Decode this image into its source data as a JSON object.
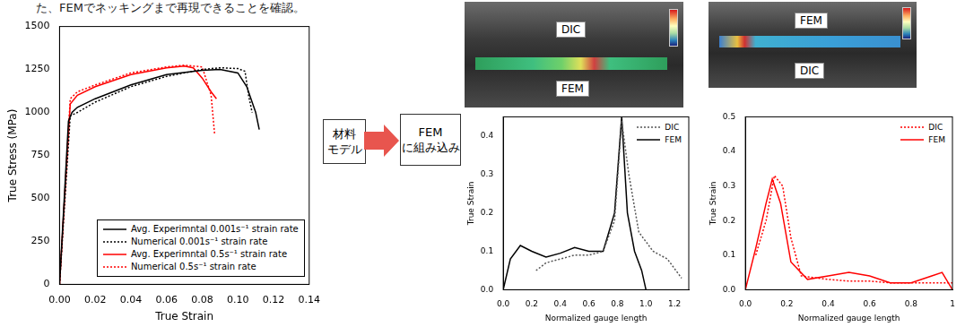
{
  "header": {
    "text": "た、FEMでネッキングまで再現できることを確認。"
  },
  "flow": [
    [
      "材料",
      "モデル"
    ],
    [
      "FEM",
      "に組み込み"
    ]
  ],
  "images": [
    {
      "labels": [
        "DIC",
        "FEM"
      ]
    },
    {
      "labels": [
        "FEM",
        "DIC"
      ]
    }
  ],
  "chart_data": [
    {
      "type": "line",
      "x_label": "True Strain",
      "y_label": "True Stress (MPa)",
      "xlim": [
        0,
        0.14
      ],
      "xticks": [
        {
          "value": 0,
          "label": "0.00"
        },
        {
          "value": 0.02,
          "label": "0.02"
        },
        {
          "value": 0.04,
          "label": "0.04"
        },
        {
          "value": 0.06,
          "label": "0.06"
        },
        {
          "value": 0.08,
          "label": "0.08"
        },
        {
          "value": 0.1,
          "label": "0.10"
        },
        {
          "value": 0.12,
          "label": "0.12"
        },
        {
          "value": 0.14,
          "label": "0.14"
        }
      ],
      "ylim": [
        0,
        1500
      ],
      "yticks": [
        0,
        250,
        500,
        750,
        1000,
        1250,
        1500
      ],
      "grid": false,
      "legend": "lower right",
      "series": [
        {
          "name": "Avg. Experimntal 0.001s⁻¹ strain rate",
          "color": "#000000",
          "line_style": "solid",
          "x": [
            0,
            0.005,
            0.007,
            0.01,
            0.02,
            0.04,
            0.06,
            0.08,
            0.09,
            0.1,
            0.105,
            0.11,
            0.112
          ],
          "values": [
            0,
            950,
            1000,
            1030,
            1080,
            1160,
            1220,
            1245,
            1250,
            1230,
            1150,
            1000,
            900
          ]
        },
        {
          "name": "Numerical 0.001s⁻¹ strain rate",
          "color": "#000000",
          "line_style": "dotted",
          "x": [
            0,
            0.006,
            0.01,
            0.02,
            0.04,
            0.06,
            0.08,
            0.09,
            0.1,
            0.104,
            0.106,
            0.108
          ],
          "values": [
            0,
            980,
            1000,
            1060,
            1150,
            1210,
            1250,
            1260,
            1255,
            1240,
            1100,
            1000
          ]
        },
        {
          "name": "Avg. Experimntal 0.5s⁻¹ strain rate",
          "color": "#ff0000",
          "line_style": "solid",
          "x": [
            0,
            0.006,
            0.01,
            0.02,
            0.04,
            0.06,
            0.07,
            0.075,
            0.08,
            0.085,
            0.088
          ],
          "values": [
            0,
            1050,
            1100,
            1150,
            1220,
            1260,
            1270,
            1260,
            1200,
            1120,
            1080
          ]
        },
        {
          "name": "Numerical 0.5s⁻¹ strain rate",
          "color": "#ff0000",
          "line_style": "dotted",
          "x": [
            0,
            0.006,
            0.01,
            0.02,
            0.04,
            0.06,
            0.07,
            0.08,
            0.085,
            0.087
          ],
          "values": [
            0,
            1080,
            1120,
            1160,
            1230,
            1265,
            1275,
            1265,
            1100,
            870
          ]
        }
      ]
    },
    {
      "type": "line",
      "x_label": "Normalized gauge length",
      "y_label": "True Strain",
      "xlim": [
        0,
        1.3
      ],
      "xticks": [
        {
          "value": 0,
          "label": "0.0"
        },
        {
          "value": 0.2,
          "label": "0.2"
        },
        {
          "value": 0.4,
          "label": "0.4"
        },
        {
          "value": 0.6,
          "label": "0.6"
        },
        {
          "value": 0.8,
          "label": "0.8"
        },
        {
          "value": 1,
          "label": "1.0"
        },
        {
          "value": 1.2,
          "label": "1.2"
        }
      ],
      "ylim": [
        0,
        0.45
      ],
      "yticks": [
        {
          "value": 0,
          "label": "0.0"
        },
        0.1,
        0.2,
        0.3,
        0.4
      ],
      "grid": false,
      "legend": "upper right",
      "series": [
        {
          "name": "DIC",
          "color": "#555555",
          "line_style": "dotted",
          "x": [
            0.23,
            0.3,
            0.4,
            0.5,
            0.6,
            0.7,
            0.78,
            0.83,
            0.88,
            0.95,
            1.05,
            1.15,
            1.25
          ],
          "values": [
            0.05,
            0.07,
            0.08,
            0.09,
            0.09,
            0.1,
            0.18,
            0.44,
            0.3,
            0.15,
            0.1,
            0.08,
            0.03
          ]
        },
        {
          "name": "FEM",
          "color": "#000000",
          "line_style": "solid",
          "x": [
            0,
            0.05,
            0.12,
            0.2,
            0.3,
            0.4,
            0.5,
            0.6,
            0.7,
            0.78,
            0.83,
            0.87,
            0.92,
            0.97,
            1.0
          ],
          "values": [
            0,
            0.08,
            0.115,
            0.1,
            0.085,
            0.095,
            0.11,
            0.1,
            0.1,
            0.2,
            0.45,
            0.2,
            0.1,
            0.05,
            0
          ]
        }
      ]
    },
    {
      "type": "line",
      "x_label": "Normalized gauge length",
      "y_label": "True Strain",
      "xlim": [
        0,
        1
      ],
      "xticks": [
        {
          "value": 0,
          "label": "0.0"
        },
        0.2,
        0.4,
        0.6,
        0.8,
        1
      ],
      "ylim": [
        0,
        0.5
      ],
      "yticks": [
        {
          "value": 0,
          "label": "0.0"
        },
        0.1,
        0.2,
        0.3,
        0.4,
        0.5
      ],
      "grid": false,
      "legend": "upper right",
      "series": [
        {
          "name": "DIC",
          "color": "#ff0000",
          "line_style": "dotted",
          "x": [
            0.05,
            0.1,
            0.14,
            0.18,
            0.22,
            0.27,
            0.4,
            0.5,
            0.6,
            0.7,
            0.8,
            0.9,
            1.0
          ],
          "values": [
            0.1,
            0.2,
            0.33,
            0.3,
            0.15,
            0.04,
            0.03,
            0.025,
            0.025,
            0.02,
            0.02,
            0.02,
            0.02
          ]
        },
        {
          "name": "FEM",
          "color": "#ff0000",
          "line_style": "solid",
          "x": [
            0,
            0.05,
            0.1,
            0.13,
            0.17,
            0.22,
            0.3,
            0.4,
            0.5,
            0.6,
            0.7,
            0.8,
            0.9,
            0.95,
            1.0
          ],
          "values": [
            0,
            0.12,
            0.25,
            0.32,
            0.25,
            0.08,
            0.03,
            0.04,
            0.05,
            0.04,
            0.02,
            0.02,
            0.04,
            0.05,
            0
          ]
        }
      ]
    }
  ]
}
